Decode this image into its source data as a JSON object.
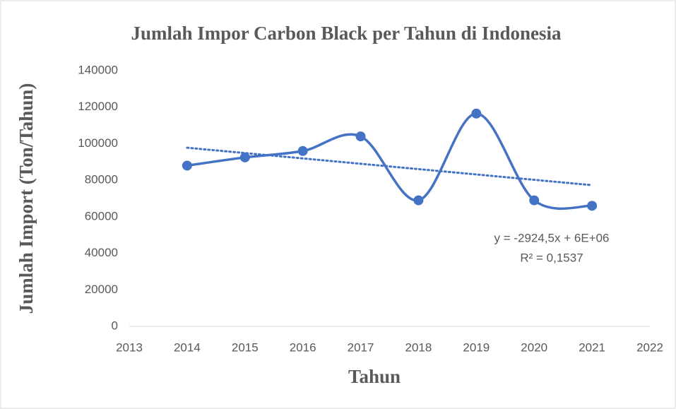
{
  "chart_data": {
    "type": "scatter_smooth",
    "title": "Jumlah Impor Carbon Black per Tahun di Indonesia",
    "xlabel": "Tahun",
    "ylabel": "Jumlah Import (Ton/Tahun)",
    "x": [
      2014,
      2015,
      2016,
      2017,
      2018,
      2019,
      2020,
      2021
    ],
    "series": [
      {
        "name": "Jumlah Import",
        "color": "#4472c4",
        "values": [
          88000,
          92500,
          96000,
          104000,
          69000,
          116500,
          69000,
          66000
        ]
      }
    ],
    "trendline": {
      "x": [
        2014,
        2021
      ],
      "values": [
        97800,
        77300
      ],
      "color": "#4472c4",
      "equation": "y = -2924,5x + 6E+06",
      "r_squared": "R² = 0,1537"
    },
    "xlim": [
      2013,
      2022
    ],
    "xticks": [
      2013,
      2014,
      2015,
      2016,
      2017,
      2018,
      2019,
      2020,
      2021,
      2022
    ],
    "ylim": [
      0,
      140000
    ],
    "yticks": [
      0,
      20000,
      40000,
      60000,
      80000,
      100000,
      120000,
      140000
    ],
    "grid": false
  }
}
